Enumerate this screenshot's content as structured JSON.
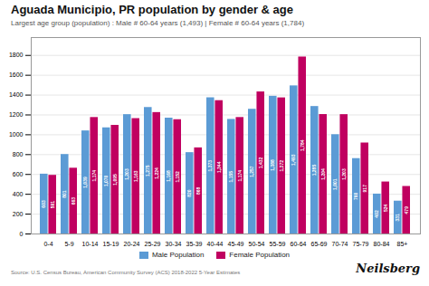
{
  "chart_data": {
    "type": "bar",
    "title": "Aguada Municipio, PR population by gender & age",
    "subtitle": "Largest age group (population) : Male # 60-64 years (1,493) | Female # 60-64 years (1,784)",
    "annotations": [
      "Source: U.S. Census Bureau, American Community Survey (ACS) 2018-2022 5-Year Estimates",
      "Neilsberg"
    ],
    "categories": [
      "0-4",
      "5-9",
      "10-14",
      "15-19",
      "20-24",
      "25-29",
      "30-34",
      "35-39",
      "40-44",
      "45-49",
      "50-54",
      "55-59",
      "60-64",
      "65-69",
      "70-74",
      "75-79",
      "80-84",
      "85+"
    ],
    "series": [
      {
        "name": "Male Population",
        "color": "#5B9BD5",
        "values": [
          603,
          801,
          1039,
          1070,
          1203,
          1275,
          1168,
          820,
          1373,
          1155,
          1257,
          1388,
          1493,
          1285,
          1001,
          760,
          402,
          331
        ],
        "value_labels": [
          "603",
          "801",
          "1,039",
          "1,070",
          "1,203",
          "1,275",
          "1,168",
          "820",
          "1,373",
          "1,155",
          "1,257",
          "1,388",
          "1,493",
          "1,285",
          "1,001",
          "760",
          "402",
          "331"
        ]
      },
      {
        "name": "Female Population",
        "color": "#C00060",
        "values": [
          591,
          663,
          1174,
          1095,
          1163,
          1224,
          1152,
          868,
          1344,
          1174,
          1432,
          1372,
          1784,
          1204,
          1203,
          917,
          524,
          479
        ],
        "value_labels": [
          "591",
          "663",
          "1,174",
          "1,095",
          "1,163",
          "1,224",
          "1,152",
          "868",
          "1,344",
          "1,174",
          "1,432",
          "1,372",
          "1,784",
          "1,204",
          "1,203",
          "917",
          "524",
          "479"
        ]
      }
    ],
    "ylim": [
      0,
      1980
    ],
    "yticks": [
      0,
      200,
      400,
      600,
      800,
      1000,
      1200,
      1400,
      1600,
      1800
    ],
    "grid": true,
    "legend": "bottom",
    "data_labels": true
  }
}
